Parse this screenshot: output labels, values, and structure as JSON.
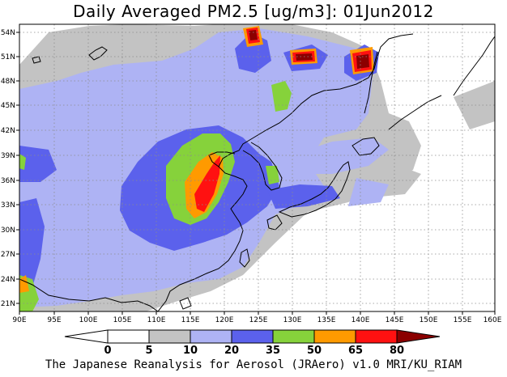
{
  "title": "Daily Averaged PM2.5 [ug/m3]: 01Jun2012",
  "footer": "The Japanese Reanalysis for Aerosol (JRAero) v1.0 MRI/KU_RIAM",
  "map": {
    "lon_range": [
      90,
      160
    ],
    "lat_range": [
      20,
      55
    ],
    "x_ticks": [
      "90E",
      "95E",
      "100E",
      "105E",
      "110E",
      "115E",
      "120E",
      "125E",
      "130E",
      "135E",
      "140E",
      "145E",
      "150E",
      "155E",
      "160E"
    ],
    "y_ticks": [
      "21N",
      "24N",
      "27N",
      "30N",
      "33N",
      "36N",
      "39N",
      "42N",
      "45N",
      "48N",
      "51N",
      "54N"
    ],
    "gridlines": "dotted",
    "colors": {
      "c0": "#ffffff",
      "c5": "#c3c3c3",
      "c10": "#aeb3f4",
      "c20": "#5b61ec",
      "c35": "#86d23b",
      "c50": "#ff9a00",
      "c65": "#ff1111",
      "c80": "#8b0000",
      "coast": "#000000",
      "grid": "#8c8c8c"
    }
  },
  "colorbar": {
    "labels": [
      "0",
      "5",
      "10",
      "20",
      "35",
      "50",
      "65",
      "80"
    ],
    "colors": [
      "#ffffff",
      "#c3c3c3",
      "#aeb3f4",
      "#5b61ec",
      "#86d23b",
      "#ff9a00",
      "#ff1111",
      "#8b0000"
    ]
  }
}
